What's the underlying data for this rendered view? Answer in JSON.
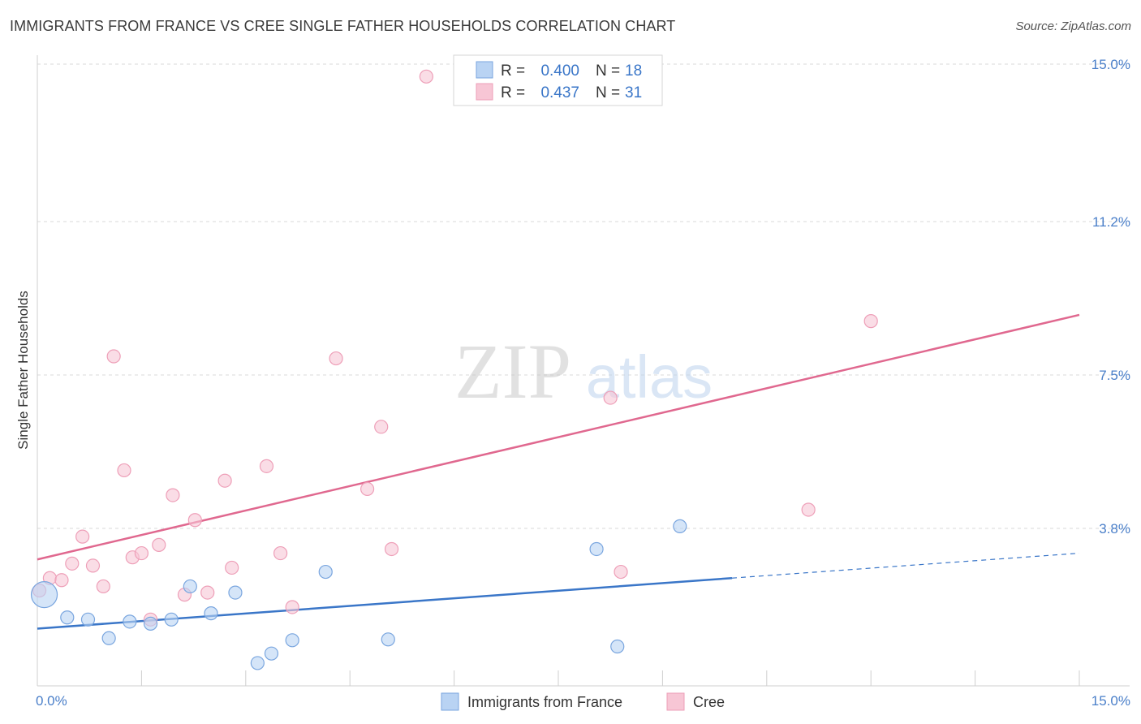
{
  "title": "IMMIGRANTS FROM FRANCE VS CREE SINGLE FATHER HOUSEHOLDS CORRELATION CHART",
  "source": "Source: ZipAtlas.com",
  "watermark": {
    "zip": "ZIP",
    "atlas": "atlas"
  },
  "colors": {
    "blue": "#3a76c8",
    "blue_fill": "#b9d3f3",
    "blue_stroke": "#7aa6df",
    "pink": "#e0688f",
    "pink_fill": "#f7c6d5",
    "pink_stroke": "#ee9fb8",
    "tick": "#4a7fc9",
    "grid": "#d9d9d9"
  },
  "legend": {
    "rows": [
      {
        "r_label": "R =",
        "r_value": "0.400",
        "n_label": "N =",
        "n_value": "18",
        "series": "blue"
      },
      {
        "r_label": "R =",
        "r_value": "0.437",
        "n_label": "N =",
        "n_value": "31",
        "series": "pink"
      }
    ]
  },
  "chart_data": {
    "type": "scatter",
    "title": "IMMIGRANTS FROM FRANCE VS CREE SINGLE FATHER HOUSEHOLDS CORRELATION CHART",
    "xlabel": "",
    "ylabel": "Single Father Households",
    "xlim": [
      0,
      15
    ],
    "ylim": [
      0,
      15
    ],
    "x_tick_labels": [
      "0.0%",
      "15.0%"
    ],
    "y_ticks": [
      {
        "value": 3.8,
        "label": "3.8%"
      },
      {
        "value": 7.5,
        "label": "7.5%"
      },
      {
        "value": 11.2,
        "label": "11.2%"
      },
      {
        "value": 15.0,
        "label": "15.0%"
      }
    ],
    "series": [
      {
        "name": "Immigrants from France",
        "color_key": "blue",
        "R": 0.4,
        "N": 18,
        "trend": {
          "x0": 0,
          "y0": 1.38,
          "x1": 10.0,
          "y1": 2.6,
          "dash_x1": 15.0,
          "dash_y1": 3.2
        },
        "points": [
          {
            "x": 0.1,
            "y": 2.2,
            "size": 16
          },
          {
            "x": 0.43,
            "y": 1.65,
            "size": 8
          },
          {
            "x": 0.73,
            "y": 1.6,
            "size": 8
          },
          {
            "x": 1.03,
            "y": 1.15,
            "size": 8
          },
          {
            "x": 1.33,
            "y": 1.55,
            "size": 8
          },
          {
            "x": 1.63,
            "y": 1.5,
            "size": 8
          },
          {
            "x": 1.93,
            "y": 1.6,
            "size": 8
          },
          {
            "x": 2.2,
            "y": 2.4,
            "size": 8
          },
          {
            "x": 2.5,
            "y": 1.75,
            "size": 8
          },
          {
            "x": 2.85,
            "y": 2.25,
            "size": 8
          },
          {
            "x": 3.17,
            "y": 0.55,
            "size": 8
          },
          {
            "x": 3.37,
            "y": 0.78,
            "size": 8
          },
          {
            "x": 3.67,
            "y": 1.1,
            "size": 8
          },
          {
            "x": 4.15,
            "y": 2.75,
            "size": 8
          },
          {
            "x": 5.05,
            "y": 1.12,
            "size": 8
          },
          {
            "x": 8.05,
            "y": 3.3,
            "size": 8
          },
          {
            "x": 8.35,
            "y": 0.95,
            "size": 8
          },
          {
            "x": 9.25,
            "y": 3.85,
            "size": 8
          }
        ]
      },
      {
        "name": "Cree",
        "color_key": "pink",
        "R": 0.437,
        "N": 31,
        "trend": {
          "x0": 0,
          "y0": 3.05,
          "x1": 15.0,
          "y1": 8.95
        },
        "points": [
          {
            "x": 0.03,
            "y": 2.3,
            "size": 8
          },
          {
            "x": 0.18,
            "y": 2.6,
            "size": 8
          },
          {
            "x": 0.35,
            "y": 2.55,
            "size": 8
          },
          {
            "x": 0.5,
            "y": 2.95,
            "size": 8
          },
          {
            "x": 0.65,
            "y": 3.6,
            "size": 8
          },
          {
            "x": 0.8,
            "y": 2.9,
            "size": 8
          },
          {
            "x": 0.95,
            "y": 2.4,
            "size": 8
          },
          {
            "x": 1.1,
            "y": 7.95,
            "size": 8
          },
          {
            "x": 1.25,
            "y": 5.2,
            "size": 8
          },
          {
            "x": 1.37,
            "y": 3.1,
            "size": 8
          },
          {
            "x": 1.5,
            "y": 3.2,
            "size": 8
          },
          {
            "x": 1.63,
            "y": 1.6,
            "size": 8
          },
          {
            "x": 1.75,
            "y": 3.4,
            "size": 8
          },
          {
            "x": 1.95,
            "y": 4.6,
            "size": 8
          },
          {
            "x": 2.12,
            "y": 2.2,
            "size": 8
          },
          {
            "x": 2.27,
            "y": 4.0,
            "size": 8
          },
          {
            "x": 2.45,
            "y": 2.25,
            "size": 8
          },
          {
            "x": 2.7,
            "y": 4.95,
            "size": 8
          },
          {
            "x": 2.8,
            "y": 2.85,
            "size": 8
          },
          {
            "x": 3.3,
            "y": 5.3,
            "size": 8
          },
          {
            "x": 3.5,
            "y": 3.2,
            "size": 8
          },
          {
            "x": 3.67,
            "y": 1.9,
            "size": 8
          },
          {
            "x": 4.3,
            "y": 7.9,
            "size": 8
          },
          {
            "x": 4.75,
            "y": 4.75,
            "size": 8
          },
          {
            "x": 4.95,
            "y": 6.25,
            "size": 8
          },
          {
            "x": 5.1,
            "y": 3.3,
            "size": 8
          },
          {
            "x": 5.6,
            "y": 14.7,
            "size": 8
          },
          {
            "x": 8.25,
            "y": 6.95,
            "size": 8
          },
          {
            "x": 8.4,
            "y": 2.75,
            "size": 8
          },
          {
            "x": 11.1,
            "y": 4.25,
            "size": 8
          },
          {
            "x": 12.0,
            "y": 8.8,
            "size": 8
          }
        ]
      }
    ],
    "legend_position": "top-center",
    "grid": true
  },
  "bottom_legend": [
    {
      "label": "Immigrants from France",
      "color_key": "blue"
    },
    {
      "label": "Cree",
      "color_key": "pink"
    }
  ]
}
